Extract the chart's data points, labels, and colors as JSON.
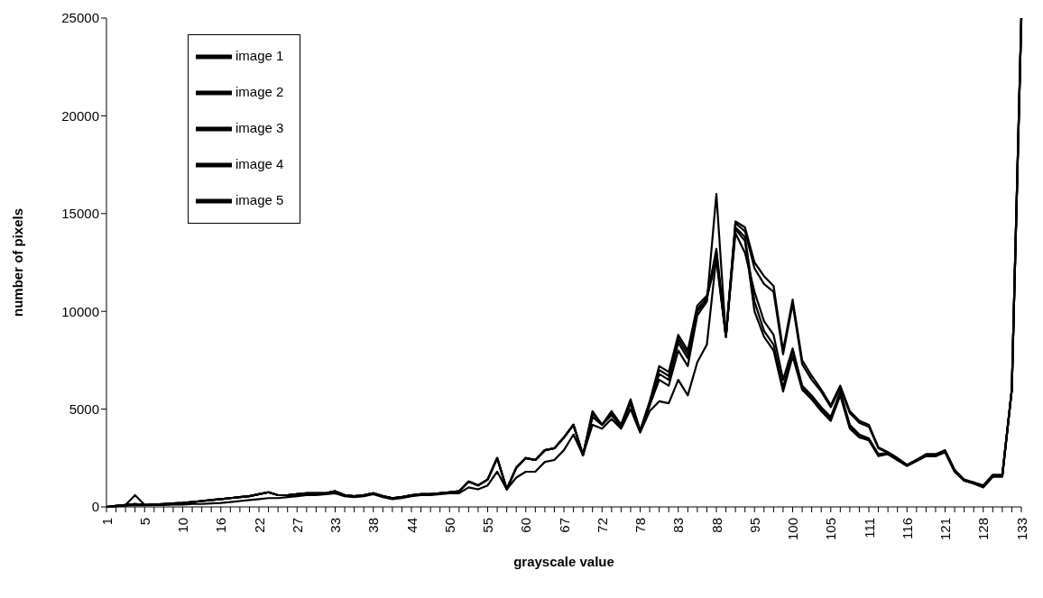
{
  "chart_data": {
    "type": "line",
    "xlabel": "grayscale value",
    "ylabel": "number of pixels",
    "categories": [
      "1",
      null,
      null,
      null,
      "5",
      null,
      null,
      null,
      "10",
      null,
      null,
      null,
      "16",
      null,
      null,
      null,
      "22",
      null,
      null,
      null,
      "27",
      null,
      null,
      null,
      "33",
      null,
      null,
      null,
      "38",
      null,
      null,
      null,
      "44",
      null,
      null,
      null,
      "50",
      null,
      null,
      null,
      "55",
      null,
      null,
      null,
      "60",
      null,
      null,
      null,
      "67",
      null,
      null,
      null,
      "72",
      null,
      null,
      null,
      "78",
      null,
      null,
      null,
      "83",
      null,
      null,
      null,
      "88",
      null,
      null,
      null,
      "95",
      null,
      null,
      null,
      "100",
      null,
      null,
      null,
      "105",
      null,
      null,
      null,
      "111",
      null,
      null,
      null,
      "116",
      null,
      null,
      null,
      "121",
      null,
      null,
      null,
      "128",
      null,
      null,
      null,
      "133"
    ],
    "series": [
      {
        "name": "image 1",
        "color": "#000000",
        "values": [
          0,
          50,
          100,
          600,
          100,
          120,
          150,
          180,
          200,
          250,
          300,
          350,
          400,
          450,
          500,
          550,
          650,
          750,
          600,
          600,
          650,
          700,
          700,
          700,
          800,
          600,
          550,
          600,
          700,
          550,
          450,
          500,
          600,
          650,
          650,
          700,
          750,
          800,
          1300,
          1100,
          1400,
          2500,
          900,
          2000,
          2500,
          2400,
          2900,
          3000,
          3550,
          4200,
          2650,
          4600,
          4200,
          4700,
          4100,
          5300,
          3900,
          5200,
          6500,
          6200,
          8000,
          7200,
          9800,
          10500,
          16000,
          8700,
          14200,
          13600,
          10000,
          8700,
          8000,
          5900,
          7700,
          6000,
          5500,
          4900,
          4400,
          5700,
          4000,
          3550,
          3400,
          2600,
          2700,
          2400,
          2100,
          2350,
          2600,
          2600,
          2800,
          1800,
          1350,
          1200,
          1000,
          1550,
          1550,
          6000,
          25000
        ]
      },
      {
        "name": "image 2",
        "color": "#000000",
        "values": [
          0,
          50,
          100,
          150,
          100,
          120,
          150,
          180,
          200,
          250,
          300,
          350,
          400,
          450,
          500,
          550,
          650,
          750,
          600,
          600,
          650,
          700,
          700,
          700,
          800,
          600,
          550,
          600,
          700,
          550,
          450,
          500,
          600,
          650,
          650,
          700,
          750,
          800,
          1300,
          1100,
          1400,
          2500,
          900,
          2000,
          2500,
          2400,
          2900,
          3000,
          3550,
          4200,
          2650,
          4900,
          4200,
          4900,
          4200,
          5500,
          3900,
          5400,
          7200,
          6900,
          8800,
          8000,
          10300,
          10800,
          13000,
          8700,
          14600,
          14300,
          12500,
          11800,
          11300,
          8000,
          10600,
          7500,
          6700,
          6000,
          5200,
          6200,
          4900,
          4400,
          4200,
          3050,
          2800,
          2500,
          2150,
          2400,
          2700,
          2700,
          2900,
          1900,
          1400,
          1250,
          1100,
          1650,
          1650,
          6000,
          25000
        ]
      },
      {
        "name": "image 3",
        "color": "#000000",
        "values": [
          0,
          30,
          60,
          100,
          80,
          100,
          100,
          120,
          120,
          150,
          150,
          180,
          200,
          250,
          300,
          350,
          400,
          450,
          450,
          500,
          550,
          600,
          600,
          650,
          700,
          550,
          500,
          550,
          650,
          500,
          400,
          450,
          550,
          600,
          600,
          650,
          700,
          700,
          1000,
          900,
          1100,
          1800,
          900,
          1500,
          1800,
          1800,
          2300,
          2400,
          2900,
          3700,
          2650,
          4200,
          4000,
          4500,
          4000,
          5000,
          3800,
          4900,
          5400,
          5300,
          6500,
          5700,
          7400,
          8300,
          12800,
          8700,
          14000,
          13000,
          11000,
          9500,
          8800,
          6500,
          8100,
          6200,
          5700,
          5100,
          4600,
          5900,
          4200,
          3700,
          3500,
          2700,
          2750,
          2450,
          2150,
          2400,
          2650,
          2650,
          2850,
          1850,
          1350,
          1250,
          1050,
          1600,
          1600,
          6000,
          25000
        ]
      },
      {
        "name": "image 4",
        "color": "#000000",
        "values": [
          0,
          50,
          100,
          150,
          100,
          120,
          150,
          180,
          200,
          250,
          300,
          350,
          400,
          450,
          500,
          550,
          650,
          750,
          600,
          600,
          650,
          700,
          700,
          700,
          800,
          600,
          550,
          600,
          700,
          550,
          450,
          500,
          600,
          650,
          650,
          700,
          750,
          800,
          1300,
          1100,
          1400,
          2500,
          900,
          2000,
          2500,
          2400,
          2900,
          3000,
          3550,
          4200,
          2650,
          4600,
          4200,
          4700,
          4100,
          5300,
          3900,
          5200,
          6800,
          6500,
          8400,
          7600,
          10000,
          10600,
          13200,
          8700,
          14300,
          13800,
          10500,
          9000,
          8300,
          6100,
          8000,
          6100,
          5600,
          5000,
          4500,
          5800,
          4100,
          3600,
          3450,
          2650,
          2700,
          2400,
          2100,
          2350,
          2600,
          2600,
          2800,
          1800,
          1350,
          1200,
          1000,
          1550,
          1550,
          6000,
          25000
        ]
      },
      {
        "name": "image 5",
        "color": "#000000",
        "values": [
          0,
          50,
          100,
          150,
          100,
          120,
          150,
          180,
          200,
          250,
          300,
          350,
          400,
          450,
          500,
          550,
          650,
          750,
          600,
          600,
          650,
          700,
          700,
          700,
          800,
          600,
          550,
          600,
          700,
          550,
          450,
          500,
          600,
          650,
          650,
          700,
          750,
          800,
          1300,
          1100,
          1400,
          2500,
          900,
          2000,
          2500,
          2400,
          2900,
          3000,
          3550,
          4200,
          2650,
          4800,
          4200,
          4800,
          4200,
          5400,
          3900,
          5300,
          7000,
          6700,
          8600,
          7800,
          10100,
          10700,
          12600,
          8700,
          14500,
          14100,
          12200,
          11400,
          11000,
          7800,
          10400,
          7300,
          6500,
          5900,
          5100,
          6100,
          4800,
          4300,
          4100,
          3000,
          2750,
          2450,
          2150,
          2400,
          2650,
          2650,
          2850,
          1850,
          1350,
          1200,
          1050,
          1600,
          1600,
          6000,
          25000
        ]
      }
    ],
    "ylim": [
      0,
      25000
    ],
    "yticks": [
      0,
      5000,
      10000,
      15000,
      20000,
      25000
    ],
    "grid": false,
    "legend": "top left",
    "marker": "none",
    "line_style": "solid"
  }
}
